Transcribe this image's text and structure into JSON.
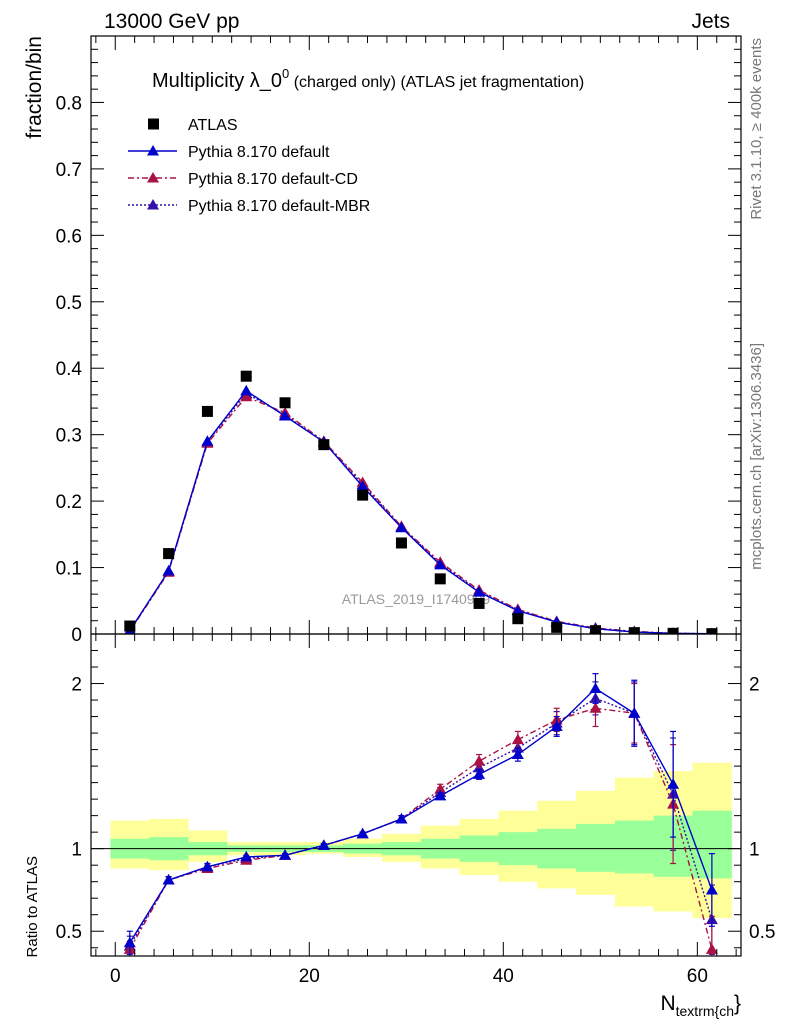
{
  "header": {
    "left": "13000 GeV pp",
    "right": "Jets"
  },
  "side_labels": {
    "rivet": "Rivet 3.1.10, ≥ 400k events",
    "mcplots": "mcplots.cern.ch [arXiv:1306.3436]"
  },
  "chart_data": {
    "type": "line",
    "title": "Multiplicity λ_0",
    "title_sup": "0",
    "title_tail": " (charged only) (ATLAS jet fragmentation)",
    "watermark": "ATLAS_2019_I1740909",
    "xlabel": "N",
    "xlabel_sub": "textrm{ch",
    "xlabel_tail": "}",
    "xlim": [
      -2.5,
      64.5
    ],
    "x_ticks": [
      0,
      20,
      40,
      60
    ],
    "x": [
      1.5,
      5.5,
      9.5,
      13.5,
      17.5,
      21.5,
      25.5,
      29.5,
      33.5,
      37.5,
      41.5,
      45.5,
      49.5,
      53.5,
      57.5,
      61.5
    ],
    "main": {
      "ylabel": "fraction/bin",
      "ylim": [
        0,
        0.9
      ],
      "y_ticks": [
        0,
        0.1,
        0.2,
        0.3,
        0.4,
        0.5,
        0.6,
        0.7,
        0.8
      ],
      "y_tick_labels": [
        "0",
        "0.1",
        "0.2",
        "0.3",
        "0.4",
        "0.5",
        "0.6",
        "0.7",
        "0.8"
      ],
      "legend_position": "top-left",
      "series": [
        {
          "name": "ATLAS",
          "color": "#000000",
          "style": "markers",
          "values": [
            0.012,
            0.121,
            0.335,
            0.388,
            0.348,
            0.285,
            0.209,
            0.137,
            0.083,
            0.046,
            0.023,
            0.01,
            0.005,
            0.002,
            0.001,
            0.0005
          ]
        },
        {
          "name": "Pythia 8.170 default",
          "color": "#0000cc",
          "style": "solid",
          "values": [
            0.005,
            0.095,
            0.29,
            0.366,
            0.328,
            0.289,
            0.222,
            0.16,
            0.104,
            0.063,
            0.035,
            0.018,
            0.008,
            0.003,
            0.001,
            0.0004
          ]
        },
        {
          "name": "Pythia 8.170 default-CD",
          "color": "#aa1144",
          "style": "dashdot",
          "values": [
            0.004,
            0.093,
            0.287,
            0.357,
            0.333,
            0.29,
            0.228,
            0.162,
            0.108,
            0.066,
            0.037,
            0.019,
            0.009,
            0.004,
            0.001,
            0.0002
          ]
        },
        {
          "name": "Pythia 8.170 default-MBR",
          "color": "#3311aa",
          "style": "dotted",
          "values": [
            0.005,
            0.094,
            0.289,
            0.362,
            0.33,
            0.289,
            0.225,
            0.161,
            0.106,
            0.064,
            0.036,
            0.018,
            0.008,
            0.003,
            0.001,
            0.0003
          ]
        }
      ]
    },
    "ratio": {
      "ylabel": "Ratio to ATLAS",
      "ylim": [
        0.35,
        2.3
      ],
      "y_ticks": [
        0.5,
        1,
        2
      ],
      "y_tick_labels": [
        "0.5",
        "1",
        "2"
      ],
      "band_edges": [
        -0.5,
        3.5,
        7.5,
        11.5,
        15.5,
        19.5,
        23.5,
        27.5,
        31.5,
        35.5,
        39.5,
        43.5,
        47.5,
        51.5,
        55.5,
        59.5,
        63.5
      ],
      "band_inner": [
        [
          0.94,
          1.06
        ],
        [
          0.93,
          1.07
        ],
        [
          0.96,
          1.04
        ],
        [
          0.98,
          1.02
        ],
        [
          0.98,
          1.02
        ],
        [
          0.98,
          1.02
        ],
        [
          0.97,
          1.03
        ],
        [
          0.96,
          1.04
        ],
        [
          0.94,
          1.06
        ],
        [
          0.92,
          1.08
        ],
        [
          0.9,
          1.1
        ],
        [
          0.88,
          1.12
        ],
        [
          0.86,
          1.15
        ],
        [
          0.85,
          1.17
        ],
        [
          0.83,
          1.2
        ],
        [
          0.82,
          1.23
        ]
      ],
      "band_outer": [
        [
          0.88,
          1.17
        ],
        [
          0.87,
          1.18
        ],
        [
          0.92,
          1.11
        ],
        [
          0.96,
          1.04
        ],
        [
          0.96,
          1.04
        ],
        [
          0.97,
          1.04
        ],
        [
          0.95,
          1.06
        ],
        [
          0.92,
          1.09
        ],
        [
          0.88,
          1.14
        ],
        [
          0.84,
          1.18
        ],
        [
          0.8,
          1.23
        ],
        [
          0.76,
          1.29
        ],
        [
          0.72,
          1.35
        ],
        [
          0.65,
          1.43
        ],
        [
          0.62,
          1.47
        ],
        [
          0.58,
          1.52
        ]
      ],
      "series": [
        {
          "name": "Pythia 8.170 default",
          "color": "#0000cc",
          "style": "solid",
          "values": [
            0.43,
            0.81,
            0.89,
            0.95,
            0.96,
            1.02,
            1.09,
            1.18,
            1.32,
            1.45,
            1.57,
            1.74,
            1.97,
            1.82,
            1.39,
            0.75
          ],
          "err": [
            0.07,
            0.02,
            0.02,
            0.01,
            0.01,
            0.01,
            0.01,
            0.02,
            0.02,
            0.03,
            0.04,
            0.06,
            0.09,
            0.2,
            0.32,
            0.22
          ]
        },
        {
          "name": "Pythia 8.170 default-CD",
          "color": "#aa1144",
          "style": "dashdot",
          "values": [
            0.39,
            0.81,
            0.88,
            0.93,
            0.96,
            1.02,
            1.09,
            1.18,
            1.36,
            1.53,
            1.66,
            1.78,
            1.85,
            1.82,
            1.27,
            0.39
          ],
          "err": [
            0.05,
            0.02,
            0.02,
            0.01,
            0.01,
            0.01,
            0.01,
            0.02,
            0.03,
            0.04,
            0.05,
            0.07,
            0.11,
            0.18,
            0.36,
            0.2
          ]
        },
        {
          "name": "Pythia 8.170 default-MBR",
          "color": "#3311aa",
          "style": "dotted",
          "values": [
            0.41,
            0.81,
            0.89,
            0.94,
            0.96,
            1.02,
            1.09,
            1.18,
            1.34,
            1.49,
            1.61,
            1.76,
            1.91,
            1.82,
            1.33,
            0.57
          ],
          "err": [
            0.06,
            0.02,
            0.02,
            0.01,
            0.01,
            0.01,
            0.01,
            0.02,
            0.03,
            0.04,
            0.05,
            0.07,
            0.1,
            0.19,
            0.34,
            0.21
          ]
        }
      ]
    }
  }
}
